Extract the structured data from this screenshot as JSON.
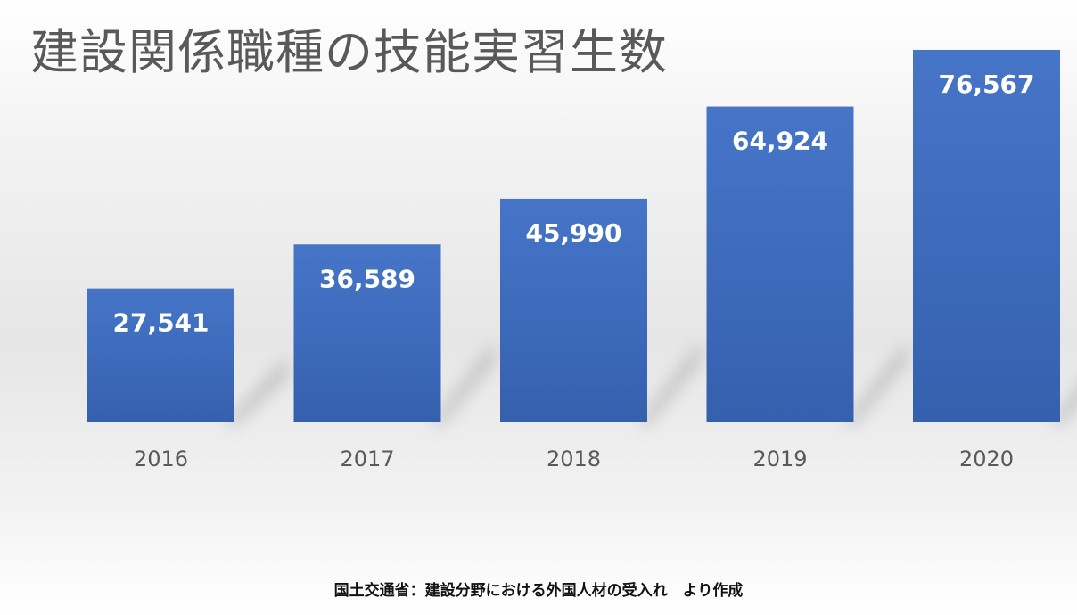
{
  "chart_data": {
    "type": "bar",
    "title": "建設関係職種の技能実習生数",
    "categories": [
      "2016",
      "2017",
      "2018",
      "2019",
      "2020"
    ],
    "values": [
      27541,
      36589,
      45990,
      64924,
      76567
    ],
    "data_labels": [
      "27,541",
      "36,589",
      "45,990",
      "64,924",
      "76,567"
    ],
    "xlabel": "",
    "ylabel": "",
    "ylim": [
      0,
      80000
    ],
    "grid": false,
    "legend": "none",
    "bar_color": "#4472c4"
  },
  "source_note": "国土交通省：建設分野における外国人材の受入れ　より作成"
}
